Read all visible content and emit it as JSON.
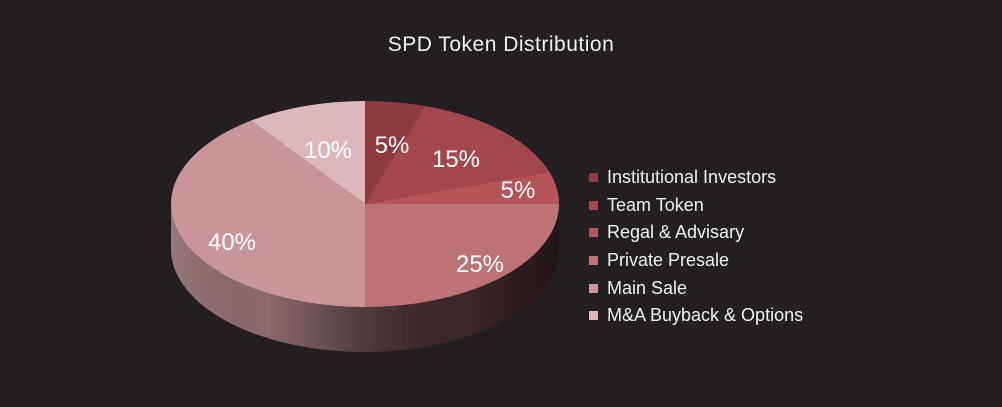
{
  "chart_data": {
    "type": "pie",
    "title": "SPD Token Distribution",
    "legend_position": "right",
    "slices": [
      {
        "name": "Institutional Investors",
        "value": 5,
        "label": "5%",
        "color": "#8e3c3f",
        "side_color": "#5a2528"
      },
      {
        "name": "Team Token",
        "value": 15,
        "label": "15%",
        "color": "#a4474c",
        "side_color": "#6b2e32"
      },
      {
        "name": "Regal & Advisary",
        "value": 5,
        "label": "5%",
        "color": "#b5555a",
        "side_color": "#76373b"
      },
      {
        "name": "Private Presale",
        "value": 25,
        "label": "25%",
        "color": "#bd7376",
        "side_color": "#3d2627"
      },
      {
        "name": "Main Sale",
        "value": 40,
        "label": "40%",
        "color": "#c99598",
        "side_color": "#8a6a6c"
      },
      {
        "name": "M&A Buyback & Options",
        "value": 10,
        "label": "10%",
        "color": "#dcb8ba",
        "side_color": "#9e8a8b"
      }
    ]
  }
}
